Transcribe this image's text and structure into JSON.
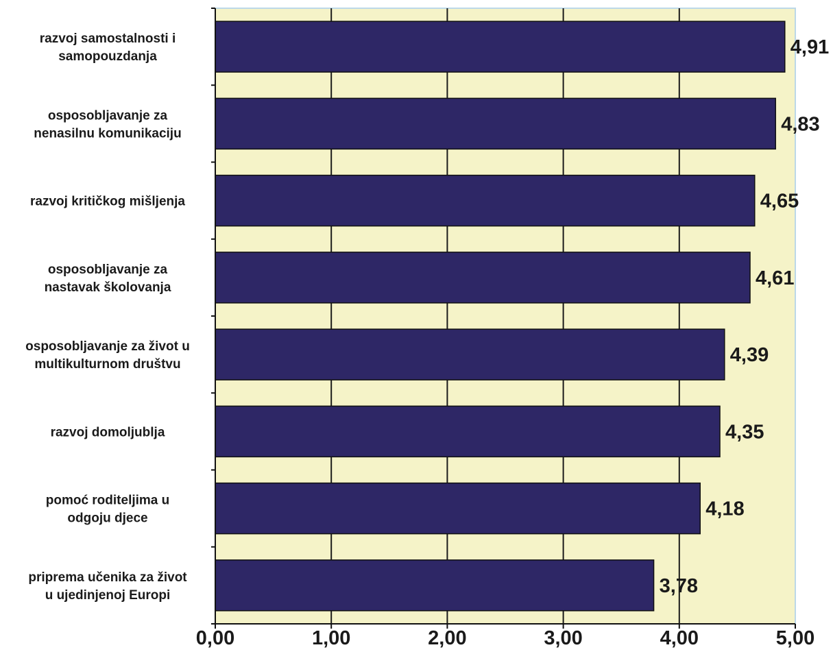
{
  "chart_data": {
    "type": "bar",
    "orientation": "horizontal",
    "categories": [
      [
        "razvoj samostalnosti i",
        "samopouzdanja"
      ],
      [
        "osposobljavanje za",
        "nenasilnu komunikaciju"
      ],
      [
        "razvoj kritičkog mišljenja"
      ],
      [
        "osposobljavanje za",
        "nastavak školovanja"
      ],
      [
        "osposobljavanje za život u",
        "multikulturnom društvu"
      ],
      [
        "razvoj domoljublja"
      ],
      [
        "pomoć roditeljima u",
        "odgoju djece"
      ],
      [
        "priprema učenika za život",
        "u ujedinjenoj Europi"
      ]
    ],
    "values": [
      4.91,
      4.83,
      4.65,
      4.61,
      4.39,
      4.35,
      4.18,
      3.78
    ],
    "value_labels": [
      "4,91",
      "4,83",
      "4,65",
      "4,61",
      "4,39",
      "4,35",
      "4,18",
      "3,78"
    ],
    "xlim": [
      0,
      5
    ],
    "ticks": [
      0,
      1,
      2,
      3,
      4,
      5
    ],
    "tick_labels": [
      "0,00",
      "1,00",
      "2,00",
      "3,00",
      "4,00",
      "5,00"
    ],
    "grid": true,
    "colors": {
      "bar": "#2e2766",
      "plot_background": "#f5f3c8",
      "grid": "#1a1a1a",
      "border": "#bcd8e8",
      "text": "#1a1a1a"
    }
  }
}
